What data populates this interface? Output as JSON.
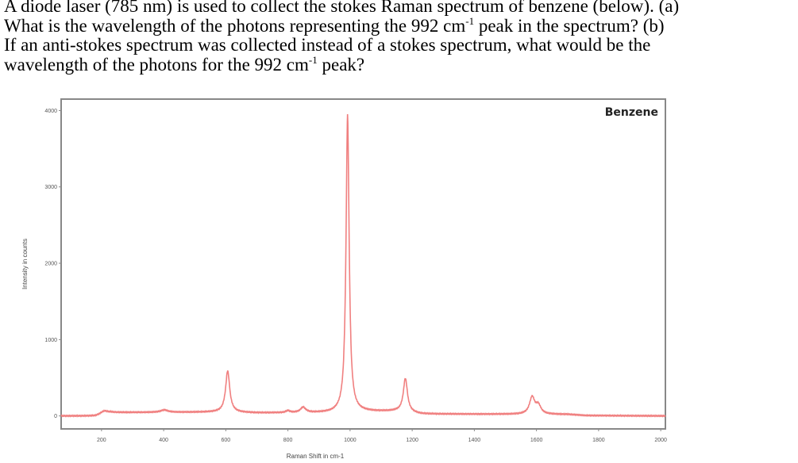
{
  "question": {
    "line1": "A diode laser (785 nm) is used to collect the stokes Raman spectrum of benzene (below).  (a)",
    "line2_a": "What is the wavelength of the photons representing the 992 cm",
    "line2_sup": "-1",
    "line2_b": " peak in the spectrum?  (b)",
    "line3": "If an anti-stokes spectrum was collected instead of a stokes spectrum, what would be the",
    "line4_a": "wavelength of the photons for the 992 cm",
    "line4_sup": "-1",
    "line4_b": " peak?"
  },
  "chart_data": {
    "type": "line",
    "title": "Benzene",
    "xlabel": "Raman Shift in cm-1",
    "ylabel": "Intensity in counts",
    "xlim": [
      70,
      2015
    ],
    "ylim": [
      -170,
      4150
    ],
    "x_ticks": [
      "200",
      "400",
      "600",
      "800",
      "1000",
      "1200",
      "1400",
      "1600",
      "1800",
      "2000"
    ],
    "y_ticks": [
      "0",
      "1000",
      "2000",
      "3000",
      "4000"
    ],
    "grid": false,
    "line_color": "#f08080",
    "series": [
      {
        "baseline": [
          [
            70,
            0
          ],
          [
            180,
            0
          ],
          [
            230,
            45
          ],
          [
            580,
            50
          ],
          [
            700,
            40
          ],
          [
            940,
            40
          ],
          [
            1050,
            55
          ],
          [
            1150,
            60
          ],
          [
            1230,
            25
          ],
          [
            1700,
            20
          ],
          [
            1760,
            5
          ],
          [
            2015,
            0
          ]
        ],
        "peaks": [
          {
            "x": 208,
            "height": 40,
            "width": 14
          },
          {
            "x": 402,
            "height": 30,
            "width": 14
          },
          {
            "x": 606,
            "height": 540,
            "width": 8
          },
          {
            "x": 800,
            "height": 25,
            "width": 8
          },
          {
            "x": 849,
            "height": 70,
            "width": 10
          },
          {
            "x": 992,
            "height": 3900,
            "width": 6
          },
          {
            "x": 1178,
            "height": 440,
            "width": 8
          },
          {
            "x": 1586,
            "height": 220,
            "width": 10
          },
          {
            "x": 1606,
            "height": 110,
            "width": 10
          }
        ]
      }
    ]
  }
}
